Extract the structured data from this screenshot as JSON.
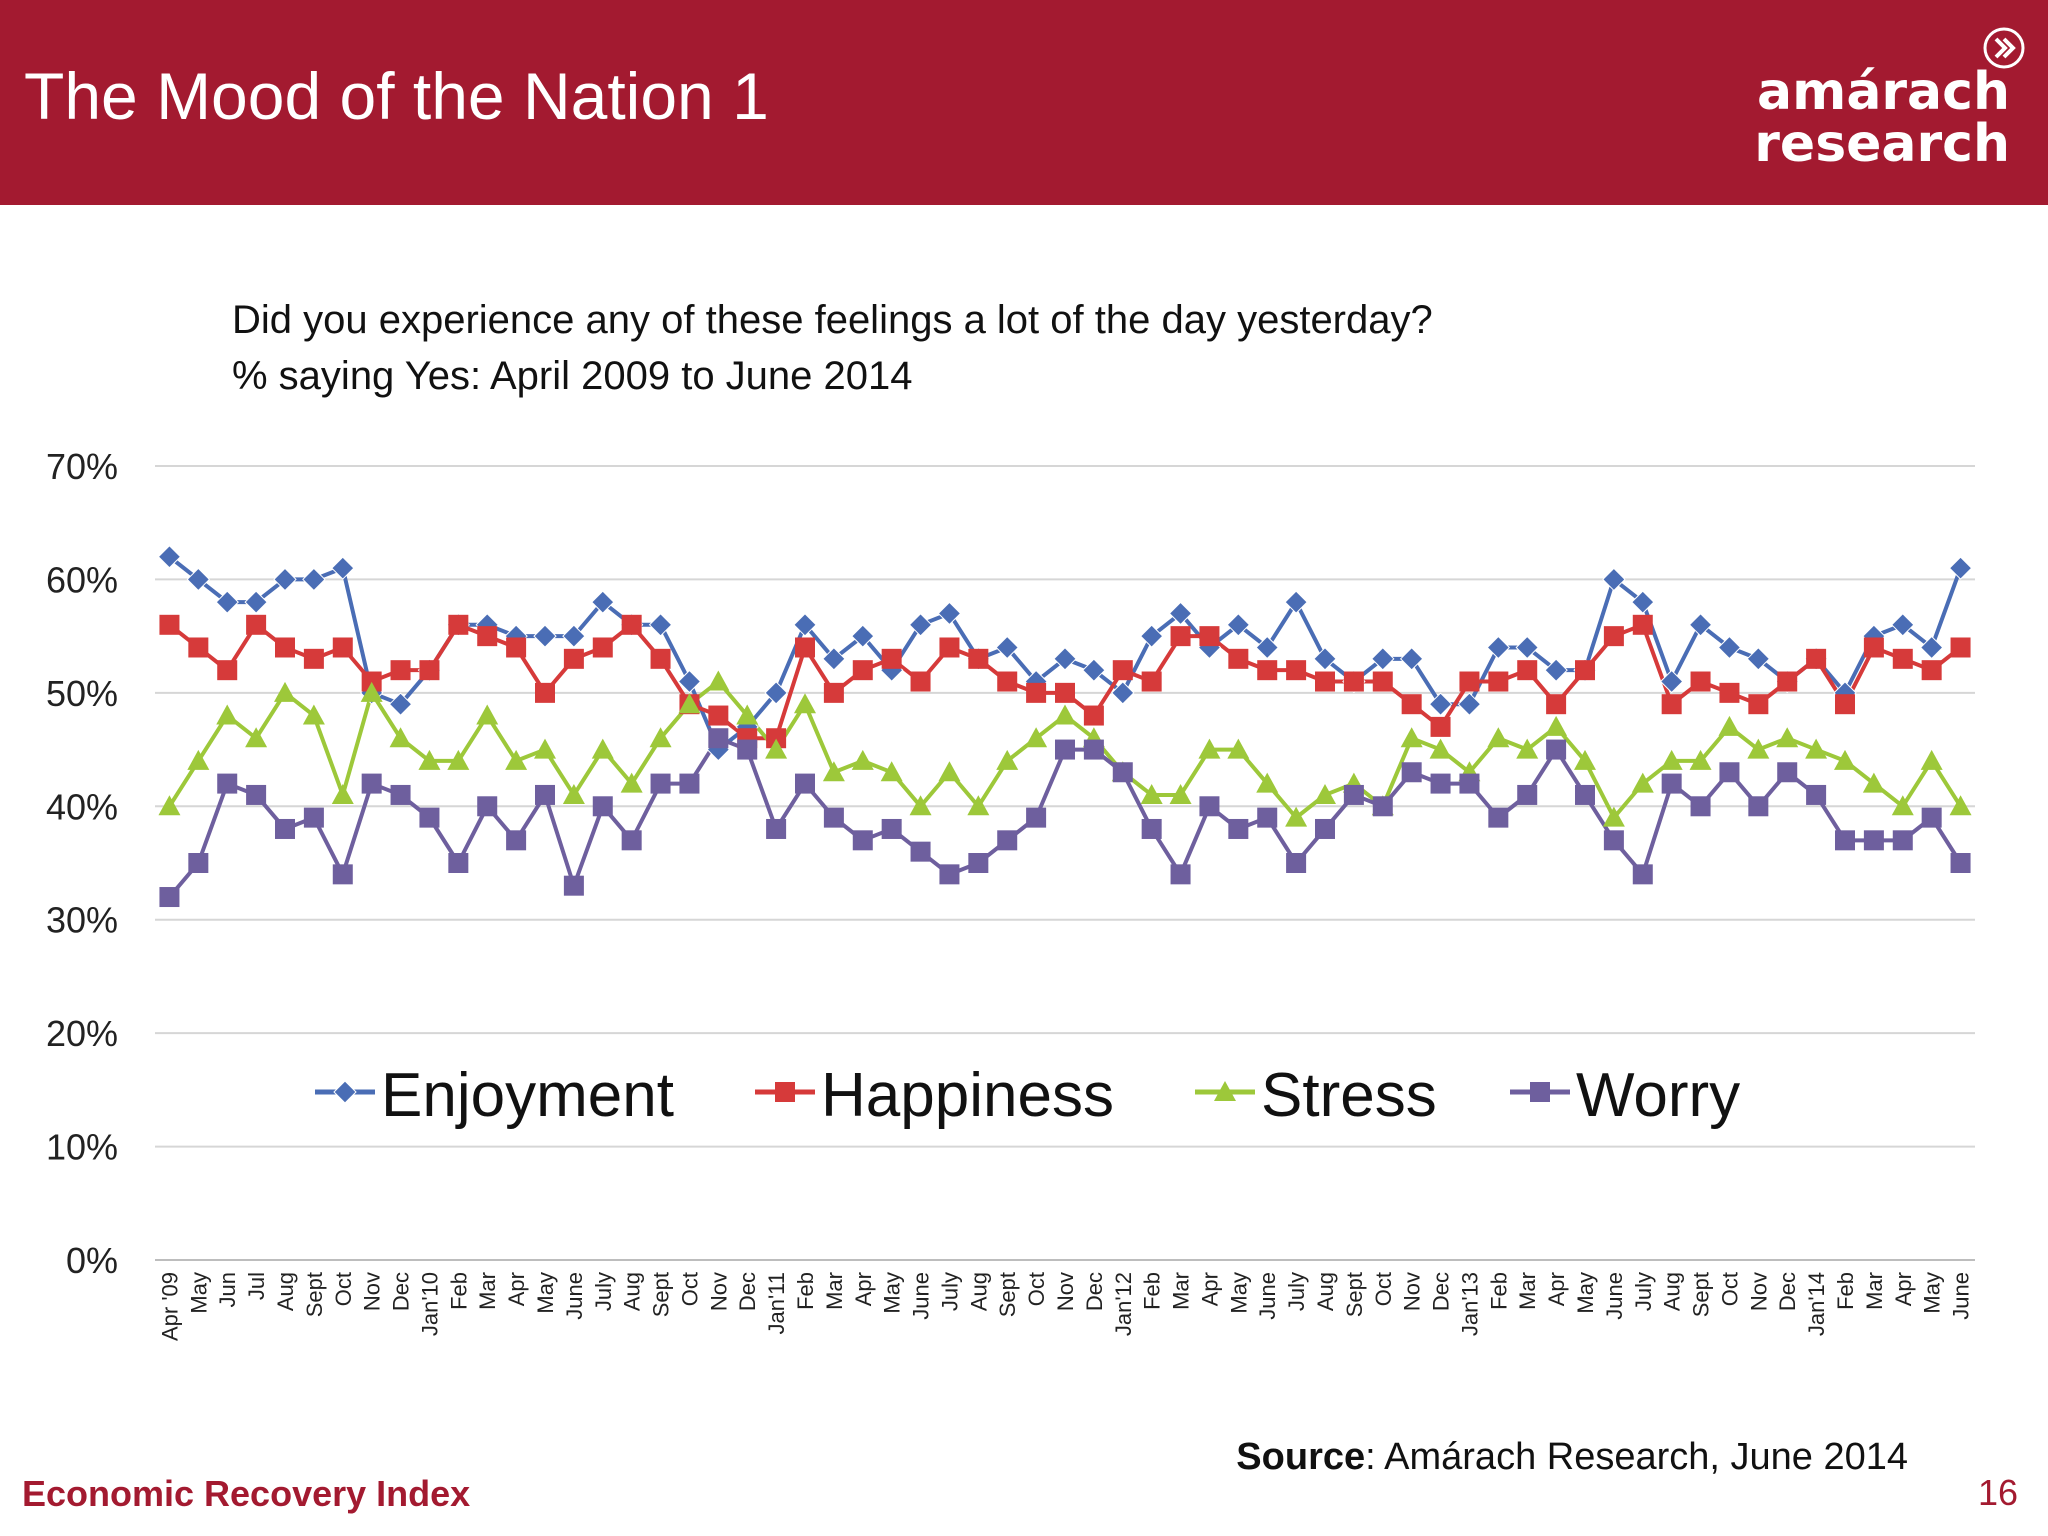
{
  "slide": {
    "title": "The Mood of the Nation 1",
    "logo": {
      "line1": "amárach",
      "line2": "research"
    },
    "question_line1": "Did you experience any of these feelings a lot of the day yesterday?",
    "question_line2": "% saying Yes: April 2009 to June 2014",
    "source_bold": "Source",
    "source_rest": ": Amárach Research, June 2014",
    "footer_left": "Economic Recovery Index",
    "page_number": "16"
  },
  "colors": {
    "header": "#a31a30",
    "enjoyment": "#4a6db5",
    "happiness": "#d63a3a",
    "stress": "#9dc83a",
    "worry": "#6e5f9e"
  },
  "chart_data": {
    "type": "line",
    "ylim": [
      0,
      70
    ],
    "yticks": [
      "0%",
      "10%",
      "20%",
      "30%",
      "40%",
      "50%",
      "60%",
      "70%"
    ],
    "grid": true,
    "legend_position": "inside-bottom",
    "categories": [
      "Apr '09",
      "May",
      "Jun",
      "Jul",
      "Aug",
      "Sept",
      "Oct",
      "Nov",
      "Dec",
      "Jan'10",
      "Feb",
      "Mar",
      "Apr",
      "May",
      "June",
      "July",
      "Aug",
      "Sept",
      "Oct",
      "Nov",
      "Dec",
      "Jan'11",
      "Feb",
      "Mar",
      "Apr",
      "May",
      "June",
      "July",
      "Aug",
      "Sept",
      "Oct",
      "Nov",
      "Dec",
      "Jan'12",
      "Feb",
      "Mar",
      "Apr",
      "May",
      "June",
      "July",
      "Aug",
      "Sept",
      "Oct",
      "Nov",
      "Dec",
      "Jan'13",
      "Feb",
      "Mar",
      "Apr",
      "May",
      "June",
      "July",
      "Aug",
      "Sept",
      "Oct",
      "Nov",
      "Dec",
      "Jan'14",
      "Feb",
      "Mar",
      "Apr",
      "May",
      "June"
    ],
    "series": [
      {
        "name": "Enjoyment",
        "marker": "diamond",
        "color": "#4a6db5",
        "values": [
          62,
          60,
          58,
          58,
          60,
          60,
          61,
          50,
          49,
          52,
          56,
          56,
          55,
          55,
          55,
          58,
          56,
          56,
          51,
          45,
          47,
          50,
          56,
          53,
          55,
          52,
          56,
          57,
          53,
          54,
          51,
          53,
          52,
          50,
          55,
          57,
          54,
          56,
          54,
          58,
          53,
          51,
          53,
          53,
          49,
          49,
          54,
          54,
          52,
          52,
          60,
          58,
          51,
          56,
          54,
          53,
          51,
          53,
          50,
          55,
          56,
          54,
          61
        ]
      },
      {
        "name": "Happiness",
        "marker": "square",
        "color": "#d63a3a",
        "values": [
          56,
          54,
          52,
          56,
          54,
          53,
          54,
          51,
          52,
          52,
          56,
          55,
          54,
          50,
          53,
          54,
          56,
          53,
          49,
          48,
          46,
          46,
          54,
          50,
          52,
          53,
          51,
          54,
          53,
          51,
          50,
          50,
          48,
          52,
          51,
          55,
          55,
          53,
          52,
          52,
          51,
          51,
          51,
          49,
          47,
          51,
          51,
          52,
          49,
          52,
          55,
          56,
          49,
          51,
          50,
          49,
          51,
          53,
          49,
          54,
          53,
          52,
          54
        ]
      },
      {
        "name": "Stress",
        "marker": "triangle",
        "color": "#9dc83a",
        "values": [
          40,
          44,
          48,
          46,
          50,
          48,
          41,
          50,
          46,
          44,
          44,
          48,
          44,
          45,
          41,
          45,
          42,
          46,
          49,
          51,
          48,
          45,
          49,
          43,
          44,
          43,
          40,
          43,
          40,
          44,
          46,
          48,
          46,
          43,
          41,
          41,
          45,
          45,
          42,
          39,
          41,
          42,
          40,
          46,
          45,
          43,
          46,
          45,
          47,
          44,
          39,
          42,
          44,
          44,
          47,
          45,
          46,
          45,
          44,
          42,
          40,
          44,
          40
        ]
      },
      {
        "name": "Worry",
        "marker": "square",
        "color": "#6e5f9e",
        "values": [
          32,
          35,
          42,
          41,
          38,
          39,
          34,
          42,
          41,
          39,
          35,
          40,
          37,
          41,
          33,
          40,
          37,
          42,
          42,
          46,
          45,
          38,
          42,
          39,
          37,
          38,
          36,
          34,
          35,
          37,
          39,
          45,
          45,
          43,
          38,
          34,
          40,
          38,
          39,
          35,
          38,
          41,
          40,
          43,
          42,
          42,
          39,
          41,
          45,
          41,
          37,
          34,
          42,
          40,
          43,
          40,
          43,
          41,
          37,
          37,
          37,
          39,
          35
        ]
      }
    ]
  }
}
